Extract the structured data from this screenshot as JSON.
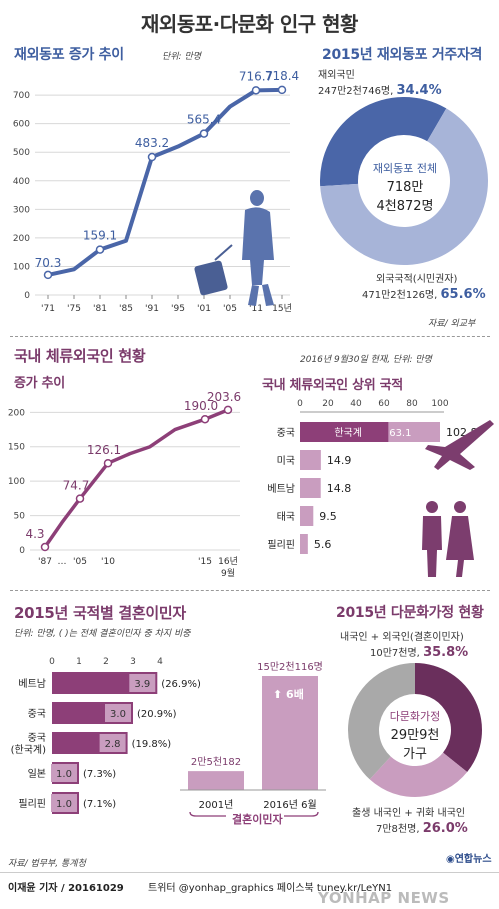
{
  "title": "재외동포·다문화 인구 현황",
  "colors": {
    "blue": "#4a66a8",
    "lightblue": "#a7b4d8",
    "purple": "#8d3f78",
    "lightpurple": "#c99dbf",
    "darkpurple": "#6a2f5c"
  },
  "section1": {
    "growth_title": "재외동포 증가 추이",
    "growth_unit": "단위: 만명",
    "qual_title": "2015년 재외동포 거주자격",
    "donut_center": {
      "label": "재외동포 전체",
      "line1": "718만",
      "line2": "4천872명"
    },
    "citizen": {
      "name": "재외국민",
      "value": "247만2천746명,",
      "pct": "34.4%"
    },
    "foreign": {
      "name": "외국국적(시민권자)",
      "value": "471만2천126명,",
      "pct": "65.6%"
    },
    "source": "자료/ 외교부"
  },
  "section2": {
    "title": "국내 체류외국인 현황",
    "date_unit": "2016년 9월30일 현재, 단위: 만명",
    "growth_title": "증가 추이",
    "nat_title": "국내 체류외국인 상위 국적",
    "korean_chinese_label": "한국계",
    "korean_chinese_value": "63.1"
  },
  "section3": {
    "marriage_title": "2015년 국적별 결혼이민자",
    "marriage_unit": "단위: 만명, ( )는 전체 결혼이민자 중 차지 비중",
    "sixfold": "6배",
    "marriage_caption": "결혼이민자",
    "family_title": "2015년 다문화가정 현황",
    "family_center": {
      "label": "다문화가정",
      "line1": "29만9천",
      "line2": "가구"
    },
    "mixed": {
      "name": "내국인 + 외국인(결혼이민자)",
      "value": "10만7천명,",
      "pct": "35.8%"
    },
    "native": {
      "name": "출생 내국인 + 귀화 내국인",
      "value": "7만8천명,",
      "pct": "26.0%"
    },
    "source": "자료/ 법무부, 통계청"
  },
  "footer": {
    "credit": "이재윤 기자 / 20161029",
    "social": "트위터 @yonhap_graphics  페이스북 tuney.kr/LeYN1",
    "agency": "연합뉴스",
    "watermark": "YONHAP NEWS"
  },
  "chart_data": [
    {
      "id": "overseas-koreans-trend",
      "type": "line",
      "title": "재외동포 증가 추이",
      "ylabel": "단위: 만명",
      "x": [
        "'71",
        "'75",
        "'81",
        "'85",
        "'91",
        "'95",
        "'01",
        "'05",
        "'11",
        "15년"
      ],
      "values": [
        70.3,
        90,
        159.1,
        190,
        483.2,
        520,
        565.4,
        660,
        716.7,
        718.4
      ],
      "labeled": {
        "'71": "70.3",
        "'81": "159.1",
        "'91": "483.2",
        "'01": "565.4",
        "'11": "716.7",
        "15년": "718.4"
      },
      "yticks": [
        0,
        100,
        200,
        300,
        400,
        500,
        600,
        700
      ],
      "ylim": [
        0,
        760
      ],
      "grid": true
    },
    {
      "id": "overseas-qualification",
      "type": "pie",
      "title": "2015년 재외동포 거주자격",
      "series": [
        {
          "name": "재외국민",
          "value": 34.4
        },
        {
          "name": "외국국적(시민권자)",
          "value": 65.6
        }
      ]
    },
    {
      "id": "foreigners-trend",
      "type": "line",
      "title": "증가 추이",
      "x": [
        "'87",
        "…",
        "'05",
        "'10",
        "",
        "",
        "",
        "'15",
        "16년 9월"
      ],
      "values": [
        4.3,
        40,
        74.7,
        126.1,
        140,
        150,
        175,
        190.0,
        203.6
      ],
      "labeled": {
        "'87": "4.3",
        "'05": "74.7",
        "'10": "126.1",
        "'15": "190.0",
        "16년 9월": "203.6"
      },
      "yticks": [
        0,
        50,
        100,
        150,
        200
      ],
      "ylim": [
        0,
        215
      ],
      "grid": true
    },
    {
      "id": "foreigners-nationality",
      "type": "bar",
      "title": "국내 체류외국인 상위 국적",
      "categories": [
        "중국",
        "미국",
        "베트남",
        "태국",
        "필리핀"
      ],
      "values": [
        102.8,
        14.9,
        14.8,
        9.5,
        5.6
      ],
      "labels": [
        "102.8",
        "14.9",
        "14.8",
        "9.5",
        "5.6"
      ],
      "sub_value": {
        "category": "중국",
        "name": "한국계",
        "value": 63.1
      },
      "xticks": [
        0,
        20,
        40,
        60,
        80,
        100
      ],
      "xlim": [
        0,
        100
      ]
    },
    {
      "id": "marriage-migrants",
      "type": "bar",
      "title": "2015년 국적별 결혼이민자",
      "categories": [
        "베트남",
        "중국",
        "중국 (한국계)",
        "일본",
        "필리핀"
      ],
      "values": [
        3.9,
        3.0,
        2.8,
        1.0,
        1.0
      ],
      "labels": [
        "3.9",
        "3.0",
        "2.8",
        "1.0",
        "1.0"
      ],
      "shares": [
        "(26.9%)",
        "(20.9%)",
        "(19.8%)",
        "(7.3%)",
        "(7.1%)"
      ],
      "xticks": [
        0,
        1,
        2,
        3,
        4
      ],
      "xlim": [
        0,
        4
      ]
    },
    {
      "id": "marriage-migrants-growth",
      "type": "bar",
      "categories": [
        "2001년",
        "2016년 6월"
      ],
      "values": [
        25182,
        152116
      ],
      "labels": [
        "2만5천182",
        "15만2천116명"
      ]
    },
    {
      "id": "multicultural-families",
      "type": "pie",
      "title": "2015년 다문화가정 현황",
      "series": [
        {
          "name": "내국인 + 외국인(결혼이민자)",
          "value": 35.8
        },
        {
          "name": "출생 내국인 + 귀화 내국인",
          "value": 26.0
        },
        {
          "name": "",
          "value": 38.2
        }
      ]
    }
  ]
}
